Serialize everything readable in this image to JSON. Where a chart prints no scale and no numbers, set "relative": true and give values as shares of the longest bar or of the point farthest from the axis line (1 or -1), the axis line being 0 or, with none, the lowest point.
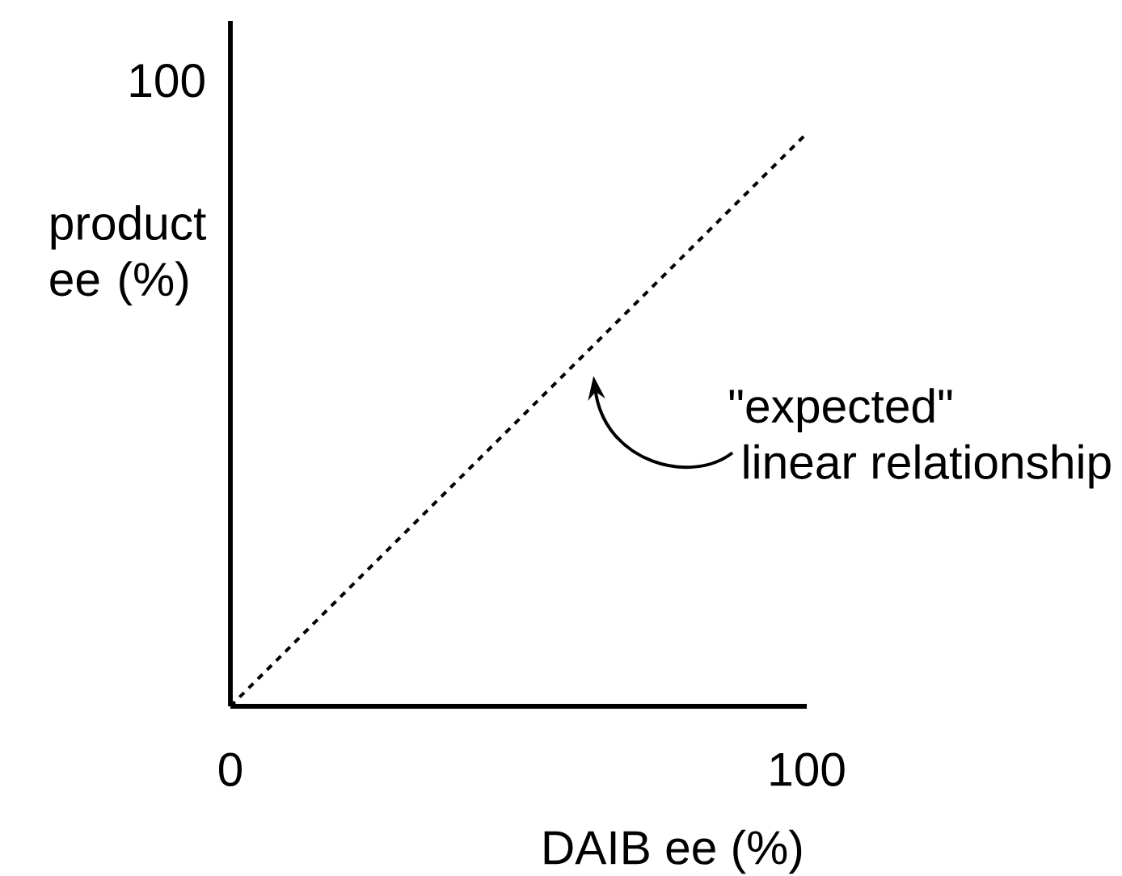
{
  "chart_data": {
    "type": "line",
    "relative": true,
    "xlabel": "DAIB ee (%)",
    "ylabel": "product ee (%)",
    "xlim": [
      0,
      100
    ],
    "xticks": [
      0,
      100
    ],
    "series": [
      {
        "x": [
          0,
          100
        ],
        "values": [
          0,
          1
        ],
        "color": "#000000",
        "line_style": "dashed"
      }
    ],
    "annotations": [
      "100",
      "\"expected\"",
      "linear relationship"
    ]
  }
}
